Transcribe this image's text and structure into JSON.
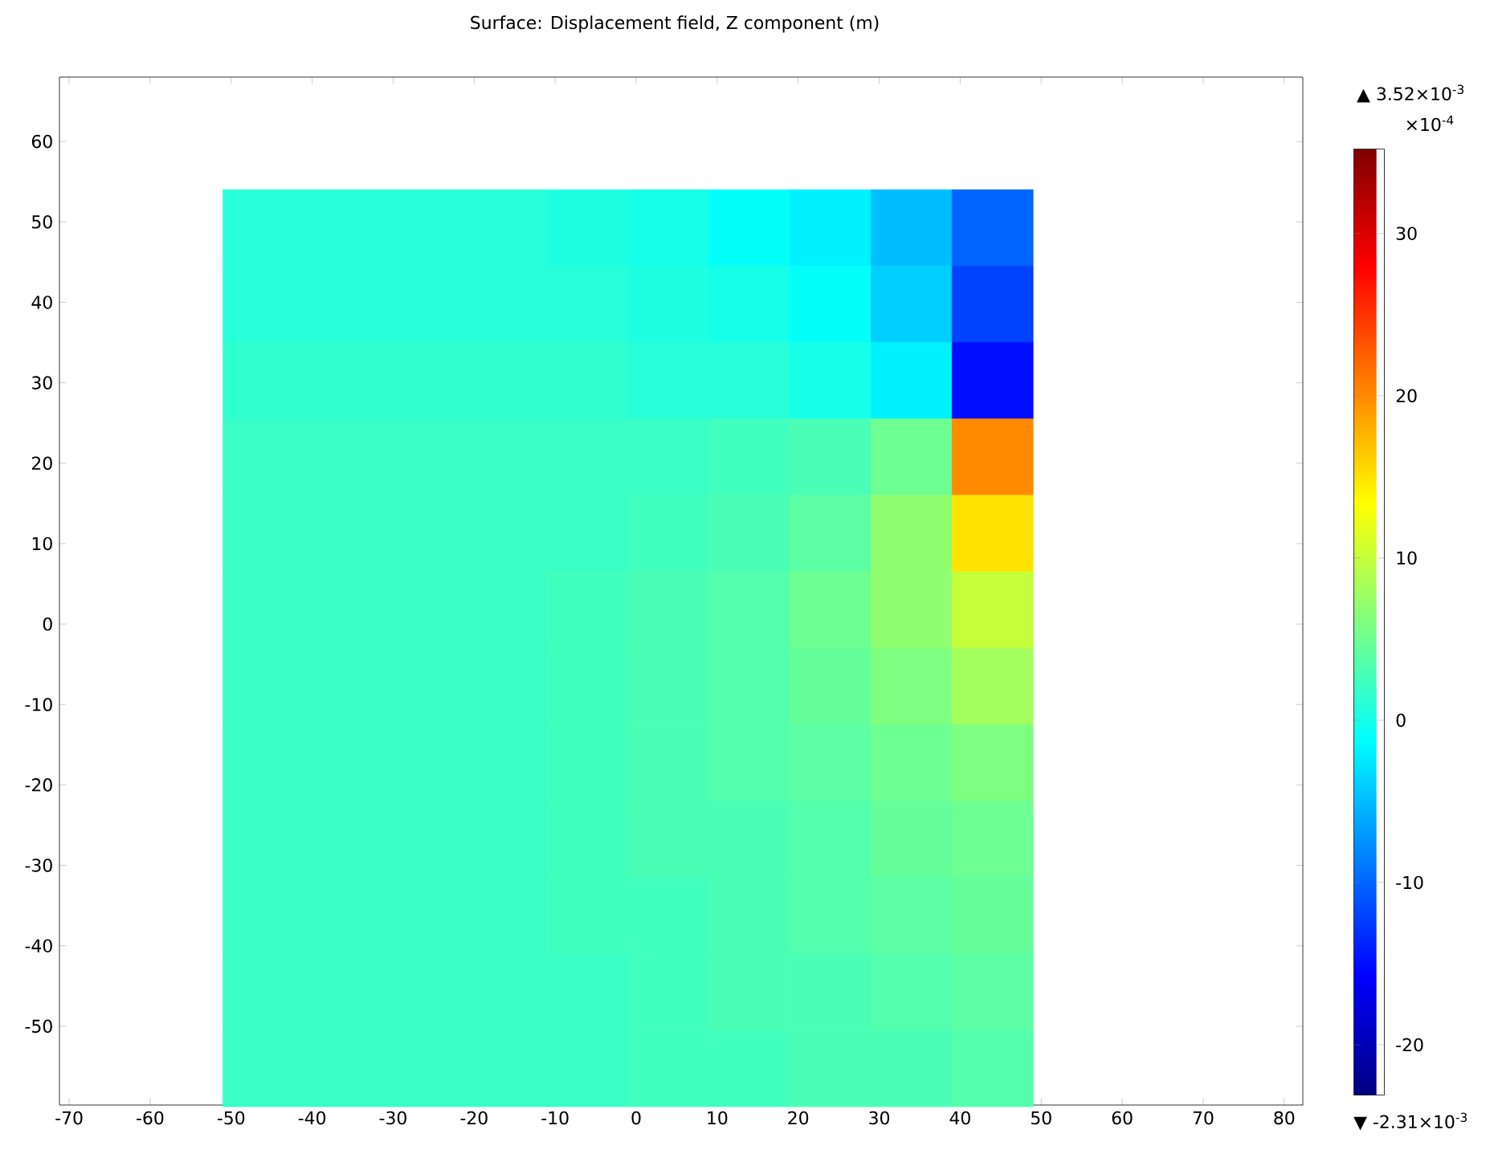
{
  "chart_data": {
    "type": "heatmap",
    "title": "Surface: Displacement field, Z component (m)",
    "x": [
      -46,
      -36,
      -26,
      -16,
      -6,
      4,
      14,
      24,
      34,
      44
    ],
    "y": [
      49.25,
      39.75,
      30.25,
      20.75,
      11.25,
      1.75,
      -7.75,
      -17.25,
      -26.75,
      -36.25,
      -45.75,
      -55.25
    ],
    "cells": [
      [
        1,
        1,
        1,
        1,
        0.5,
        0,
        -1,
        -2,
        -5,
        -10
      ],
      [
        1,
        1,
        1,
        1,
        1,
        0.5,
        0,
        -1,
        -4,
        -12
      ],
      [
        1.5,
        1.5,
        1.5,
        1.5,
        1.5,
        1,
        1,
        0,
        -2,
        -15
      ],
      [
        2,
        2,
        2,
        2,
        2,
        2,
        2.5,
        3,
        5,
        20
      ],
      [
        2,
        2,
        2,
        2,
        2,
        2.5,
        3,
        4,
        7,
        15
      ],
      [
        2,
        2,
        2,
        2,
        2.5,
        3,
        3.5,
        5,
        7,
        10
      ],
      [
        2,
        2,
        2,
        2,
        2.5,
        3,
        3.5,
        4.5,
        6,
        8
      ],
      [
        2,
        2,
        2,
        2,
        2.5,
        3,
        3.5,
        4,
        5,
        6
      ],
      [
        2,
        2,
        2,
        2,
        2.5,
        3,
        3,
        3.5,
        4.5,
        5
      ],
      [
        2,
        2,
        2,
        2,
        2.5,
        2.5,
        3,
        3.5,
        4,
        4.5
      ],
      [
        2,
        2,
        2,
        2,
        2,
        2.5,
        3,
        3,
        3.5,
        4
      ],
      [
        2,
        2,
        2,
        2,
        2,
        2.5,
        2.5,
        3,
        3,
        3.5
      ]
    ],
    "clim": [
      -23.1,
      35.2
    ],
    "cticks": [
      -20,
      -10,
      0,
      10,
      20,
      30
    ],
    "clabel": "×10$^{-4}$",
    "annotations": [
      "▲ 3.52×10$^{-3}$",
      "▼ -2.31×10$^{-3}$"
    ],
    "xlim": [
      -71.2,
      82.3
    ],
    "ylim": [
      -59.8,
      68
    ],
    "xticks": [
      -70,
      -60,
      -50,
      -40,
      -30,
      -20,
      -10,
      0,
      10,
      20,
      30,
      40,
      50,
      60,
      70,
      80
    ],
    "yticks": [
      -50,
      -40,
      -30,
      -20,
      -10,
      0,
      10,
      20,
      30,
      40,
      50,
      60
    ]
  }
}
